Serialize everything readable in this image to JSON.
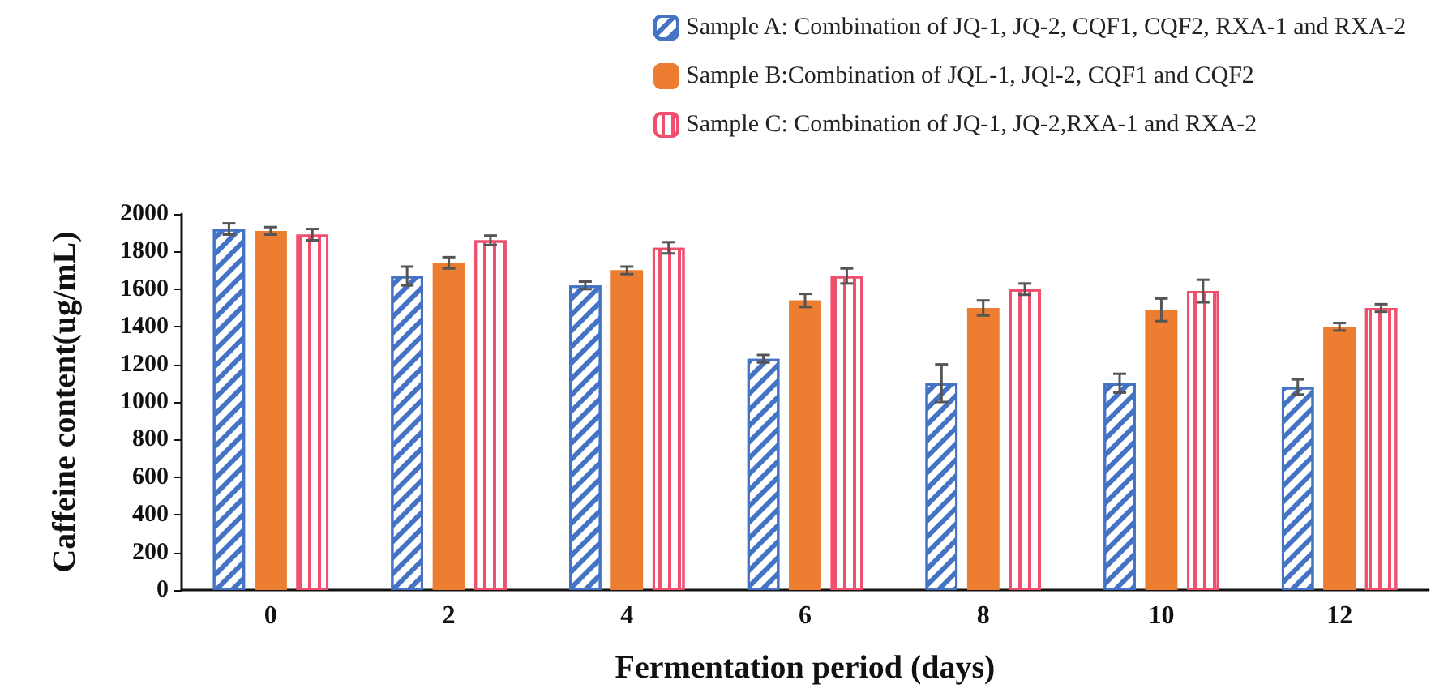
{
  "chart_data": {
    "type": "bar",
    "xlabel": "Fermentation period (days)",
    "ylabel": "Caffeine content(ug/mL)",
    "categories": [
      "0",
      "2",
      "4",
      "6",
      "8",
      "10",
      "12"
    ],
    "series": [
      {
        "name": "Sample A: Combination of JQ-1, JQ-2, CQF1, CQF2, RXA-1 and RXA-2",
        "color": "#4472c4",
        "values": [
          1920,
          1670,
          1620,
          1230,
          1100,
          1100,
          1080
        ],
        "errors": [
          30,
          50,
          20,
          20,
          100,
          50,
          40
        ]
      },
      {
        "name": "Sample B:Combination of JQL-1, JQl-2, CQF1 and CQF2",
        "color": "#ed7d31",
        "values": [
          1910,
          1740,
          1700,
          1540,
          1500,
          1490,
          1400
        ],
        "errors": [
          20,
          30,
          20,
          35,
          40,
          60,
          20
        ]
      },
      {
        "name": "Sample C: Combination of JQ-1, JQ-2,RXA-1 and RXA-2",
        "color": "#f0506e",
        "values": [
          1890,
          1860,
          1820,
          1670,
          1600,
          1590,
          1500
        ],
        "errors": [
          30,
          25,
          30,
          40,
          30,
          60,
          20
        ]
      }
    ],
    "ylim": [
      0,
      2000
    ],
    "yticks": [
      0,
      200,
      400,
      600,
      800,
      1000,
      1200,
      1400,
      1600,
      1800,
      2000
    ],
    "grid": false,
    "legend": "top right"
  }
}
